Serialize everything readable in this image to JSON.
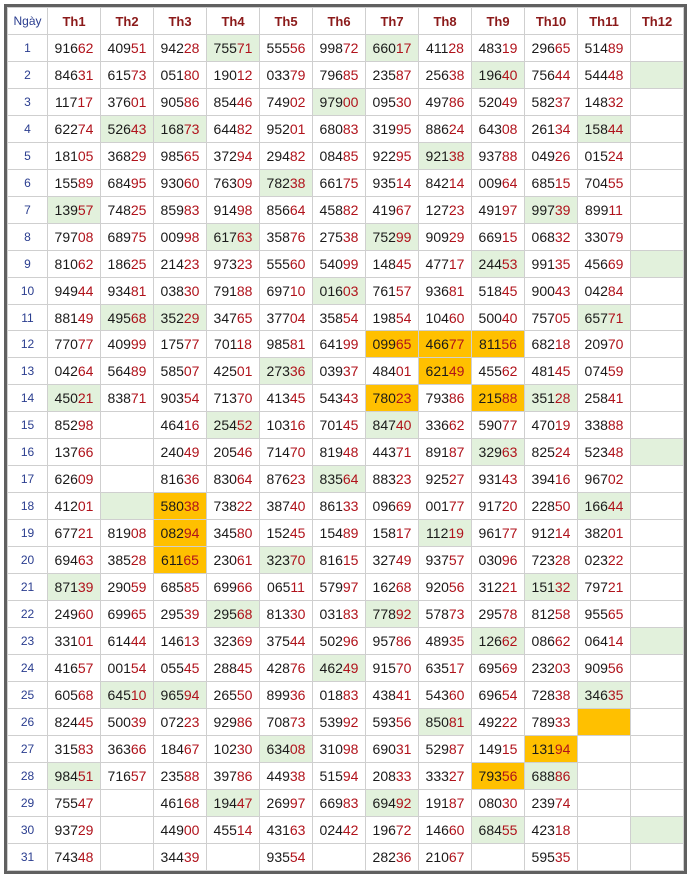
{
  "header": [
    "Ngày",
    "Th1",
    "Th2",
    "Th3",
    "Th4",
    "Th5",
    "Th6",
    "Th7",
    "Th8",
    "Th9",
    "Th10",
    "Th11",
    "Th12"
  ],
  "rows": [
    {
      "day": "1",
      "cells": [
        "91662",
        "40951",
        "94228",
        "75571",
        "55556",
        "99872",
        "66017",
        "41128",
        "48319",
        "29665",
        "51489",
        ""
      ]
    },
    {
      "day": "2",
      "cells": [
        "84631",
        "61573",
        "05180",
        "19012",
        "03379",
        "79685",
        "23587",
        "25638",
        "19640",
        "75644",
        "54448",
        ""
      ]
    },
    {
      "day": "3",
      "cells": [
        "11717",
        "37601",
        "90586",
        "85446",
        "74902",
        "97900",
        "09530",
        "49786",
        "52049",
        "58237",
        "14832",
        ""
      ]
    },
    {
      "day": "4",
      "cells": [
        "62274",
        "52643",
        "16873",
        "64482",
        "95201",
        "68083",
        "31995",
        "88624",
        "64308",
        "26134",
        "15844",
        ""
      ]
    },
    {
      "day": "5",
      "cells": [
        "18105",
        "36829",
        "98565",
        "37294",
        "29482",
        "08485",
        "92295",
        "92138",
        "93788",
        "04926",
        "01524",
        ""
      ]
    },
    {
      "day": "6",
      "cells": [
        "15589",
        "68495",
        "93060",
        "76309",
        "78238",
        "66175",
        "93514",
        "84214",
        "00964",
        "68515",
        "70455",
        ""
      ]
    },
    {
      "day": "7",
      "cells": [
        "13957",
        "74825",
        "85983",
        "91498",
        "85664",
        "45882",
        "41967",
        "12723",
        "49197",
        "99739",
        "89911",
        ""
      ]
    },
    {
      "day": "8",
      "cells": [
        "79708",
        "68975",
        "00998",
        "61763",
        "35876",
        "27538",
        "75299",
        "90929",
        "66915",
        "06832",
        "33079",
        ""
      ]
    },
    {
      "day": "9",
      "cells": [
        "81062",
        "18625",
        "21423",
        "97323",
        "55560",
        "54099",
        "14845",
        "47717",
        "24453",
        "99135",
        "45669",
        ""
      ]
    },
    {
      "day": "10",
      "cells": [
        "94944",
        "93481",
        "03830",
        "79188",
        "69710",
        "01603",
        "76157",
        "93681",
        "51845",
        "90043",
        "04284",
        ""
      ]
    },
    {
      "day": "11",
      "cells": [
        "88149",
        "49568",
        "35229",
        "34765",
        "37704",
        "35854",
        "19854",
        "10460",
        "50040",
        "75705",
        "65771",
        ""
      ]
    },
    {
      "day": "12",
      "cells": [
        "77077",
        "40999",
        "17577",
        "70118",
        "98581",
        "64199",
        "09965",
        "46677",
        "81156",
        "68218",
        "20970",
        ""
      ]
    },
    {
      "day": "13",
      "cells": [
        "04264",
        "56489",
        "58507",
        "42501",
        "27336",
        "03937",
        "48401",
        "62149",
        "45562",
        "48145",
        "07459",
        ""
      ]
    },
    {
      "day": "14",
      "cells": [
        "45021",
        "83871",
        "90354",
        "71370",
        "41345",
        "54343",
        "78023",
        "79386",
        "21588",
        "35128",
        "25841",
        ""
      ]
    },
    {
      "day": "15",
      "cells": [
        "85298",
        "",
        "46416",
        "25452",
        "10316",
        "70145",
        "84740",
        "33662",
        "59077",
        "47019",
        "33888",
        ""
      ]
    },
    {
      "day": "16",
      "cells": [
        "13766",
        "",
        "24049",
        "20546",
        "71470",
        "81948",
        "44371",
        "89187",
        "32963",
        "82524",
        "52348",
        ""
      ]
    },
    {
      "day": "17",
      "cells": [
        "62609",
        "",
        "81636",
        "83064",
        "87623",
        "83564",
        "88323",
        "92527",
        "93143",
        "39416",
        "96702",
        ""
      ]
    },
    {
      "day": "18",
      "cells": [
        "41201",
        "",
        "58038",
        "73822",
        "38740",
        "86133",
        "09669",
        "00177",
        "91720",
        "22850",
        "16644",
        ""
      ]
    },
    {
      "day": "19",
      "cells": [
        "67721",
        "81908",
        "08294",
        "34580",
        "15245",
        "15489",
        "15817",
        "11219",
        "96177",
        "91214",
        "38201",
        ""
      ]
    },
    {
      "day": "20",
      "cells": [
        "69463",
        "38528",
        "61165",
        "23061",
        "32370",
        "81615",
        "32749",
        "93757",
        "03096",
        "72328",
        "02322",
        ""
      ]
    },
    {
      "day": "21",
      "cells": [
        "87139",
        "29059",
        "68585",
        "69966",
        "06511",
        "57997",
        "16268",
        "92056",
        "31221",
        "15132",
        "79721",
        ""
      ]
    },
    {
      "day": "22",
      "cells": [
        "24960",
        "69965",
        "29539",
        "29568",
        "81330",
        "03183",
        "77892",
        "57873",
        "29578",
        "81258",
        "95565",
        ""
      ]
    },
    {
      "day": "23",
      "cells": [
        "33101",
        "61444",
        "14613",
        "32369",
        "37544",
        "50296",
        "95786",
        "48935",
        "12662",
        "08662",
        "06414",
        ""
      ]
    },
    {
      "day": "24",
      "cells": [
        "41657",
        "00154",
        "05545",
        "28845",
        "42876",
        "46249",
        "91570",
        "63517",
        "69569",
        "23203",
        "90956",
        ""
      ]
    },
    {
      "day": "25",
      "cells": [
        "60568",
        "64510",
        "96594",
        "26550",
        "89936",
        "01883",
        "43841",
        "54360",
        "69654",
        "72838",
        "34635",
        ""
      ]
    },
    {
      "day": "26",
      "cells": [
        "82445",
        "50039",
        "07223",
        "92986",
        "70873",
        "53992",
        "59356",
        "85081",
        "49222",
        "78933",
        "",
        ""
      ]
    },
    {
      "day": "27",
      "cells": [
        "31583",
        "36366",
        "18467",
        "10230",
        "63408",
        "31098",
        "69031",
        "52987",
        "14915",
        "13194",
        "",
        ""
      ]
    },
    {
      "day": "28",
      "cells": [
        "98451",
        "71657",
        "23588",
        "39786",
        "44938",
        "51594",
        "20833",
        "33327",
        "79356",
        "68886",
        "",
        ""
      ]
    },
    {
      "day": "29",
      "cells": [
        "75547",
        "",
        "46168",
        "19447",
        "26997",
        "66983",
        "69492",
        "19187",
        "08030",
        "23974",
        "",
        ""
      ]
    },
    {
      "day": "30",
      "cells": [
        "93729",
        "",
        "44900",
        "45514",
        "43163",
        "02442",
        "19672",
        "14660",
        "68455",
        "42318",
        "",
        ""
      ]
    },
    {
      "day": "31",
      "cells": [
        "74348",
        "",
        "34439",
        "",
        "93554",
        "",
        "28236",
        "21067",
        "",
        "59535",
        "",
        ""
      ]
    }
  ],
  "highlights": {
    "green_hex": "#e2f1dc",
    "orange_hex": "#ffc000",
    "green": [
      [
        1,
        4
      ],
      [
        1,
        7
      ],
      [
        2,
        9
      ],
      [
        2,
        12
      ],
      [
        3,
        6
      ],
      [
        4,
        2
      ],
      [
        4,
        3
      ],
      [
        4,
        11
      ],
      [
        5,
        8
      ],
      [
        6,
        5
      ],
      [
        7,
        1
      ],
      [
        7,
        10
      ],
      [
        8,
        4
      ],
      [
        8,
        7
      ],
      [
        9,
        9
      ],
      [
        9,
        12
      ],
      [
        10,
        6
      ],
      [
        11,
        2
      ],
      [
        11,
        3
      ],
      [
        11,
        11
      ],
      [
        13,
        5
      ],
      [
        14,
        1
      ],
      [
        14,
        10
      ],
      [
        15,
        4
      ],
      [
        15,
        7
      ],
      [
        16,
        9
      ],
      [
        16,
        12
      ],
      [
        17,
        6
      ],
      [
        18,
        2
      ],
      [
        18,
        11
      ],
      [
        19,
        8
      ],
      [
        20,
        5
      ],
      [
        21,
        1
      ],
      [
        21,
        10
      ],
      [
        22,
        4
      ],
      [
        22,
        7
      ],
      [
        23,
        9
      ],
      [
        23,
        12
      ],
      [
        24,
        6
      ],
      [
        25,
        2
      ],
      [
        25,
        3
      ],
      [
        25,
        11
      ],
      [
        26,
        8
      ],
      [
        27,
        5
      ],
      [
        28,
        1
      ],
      [
        28,
        10
      ],
      [
        29,
        4
      ],
      [
        29,
        7
      ],
      [
        30,
        9
      ],
      [
        30,
        12
      ]
    ],
    "orange": [
      [
        12,
        7
      ],
      [
        12,
        8
      ],
      [
        12,
        9
      ],
      [
        13,
        8
      ],
      [
        14,
        7
      ],
      [
        14,
        9
      ],
      [
        18,
        3
      ],
      [
        19,
        3
      ],
      [
        20,
        3
      ],
      [
        26,
        11
      ],
      [
        27,
        10
      ],
      [
        28,
        9
      ]
    ]
  }
}
